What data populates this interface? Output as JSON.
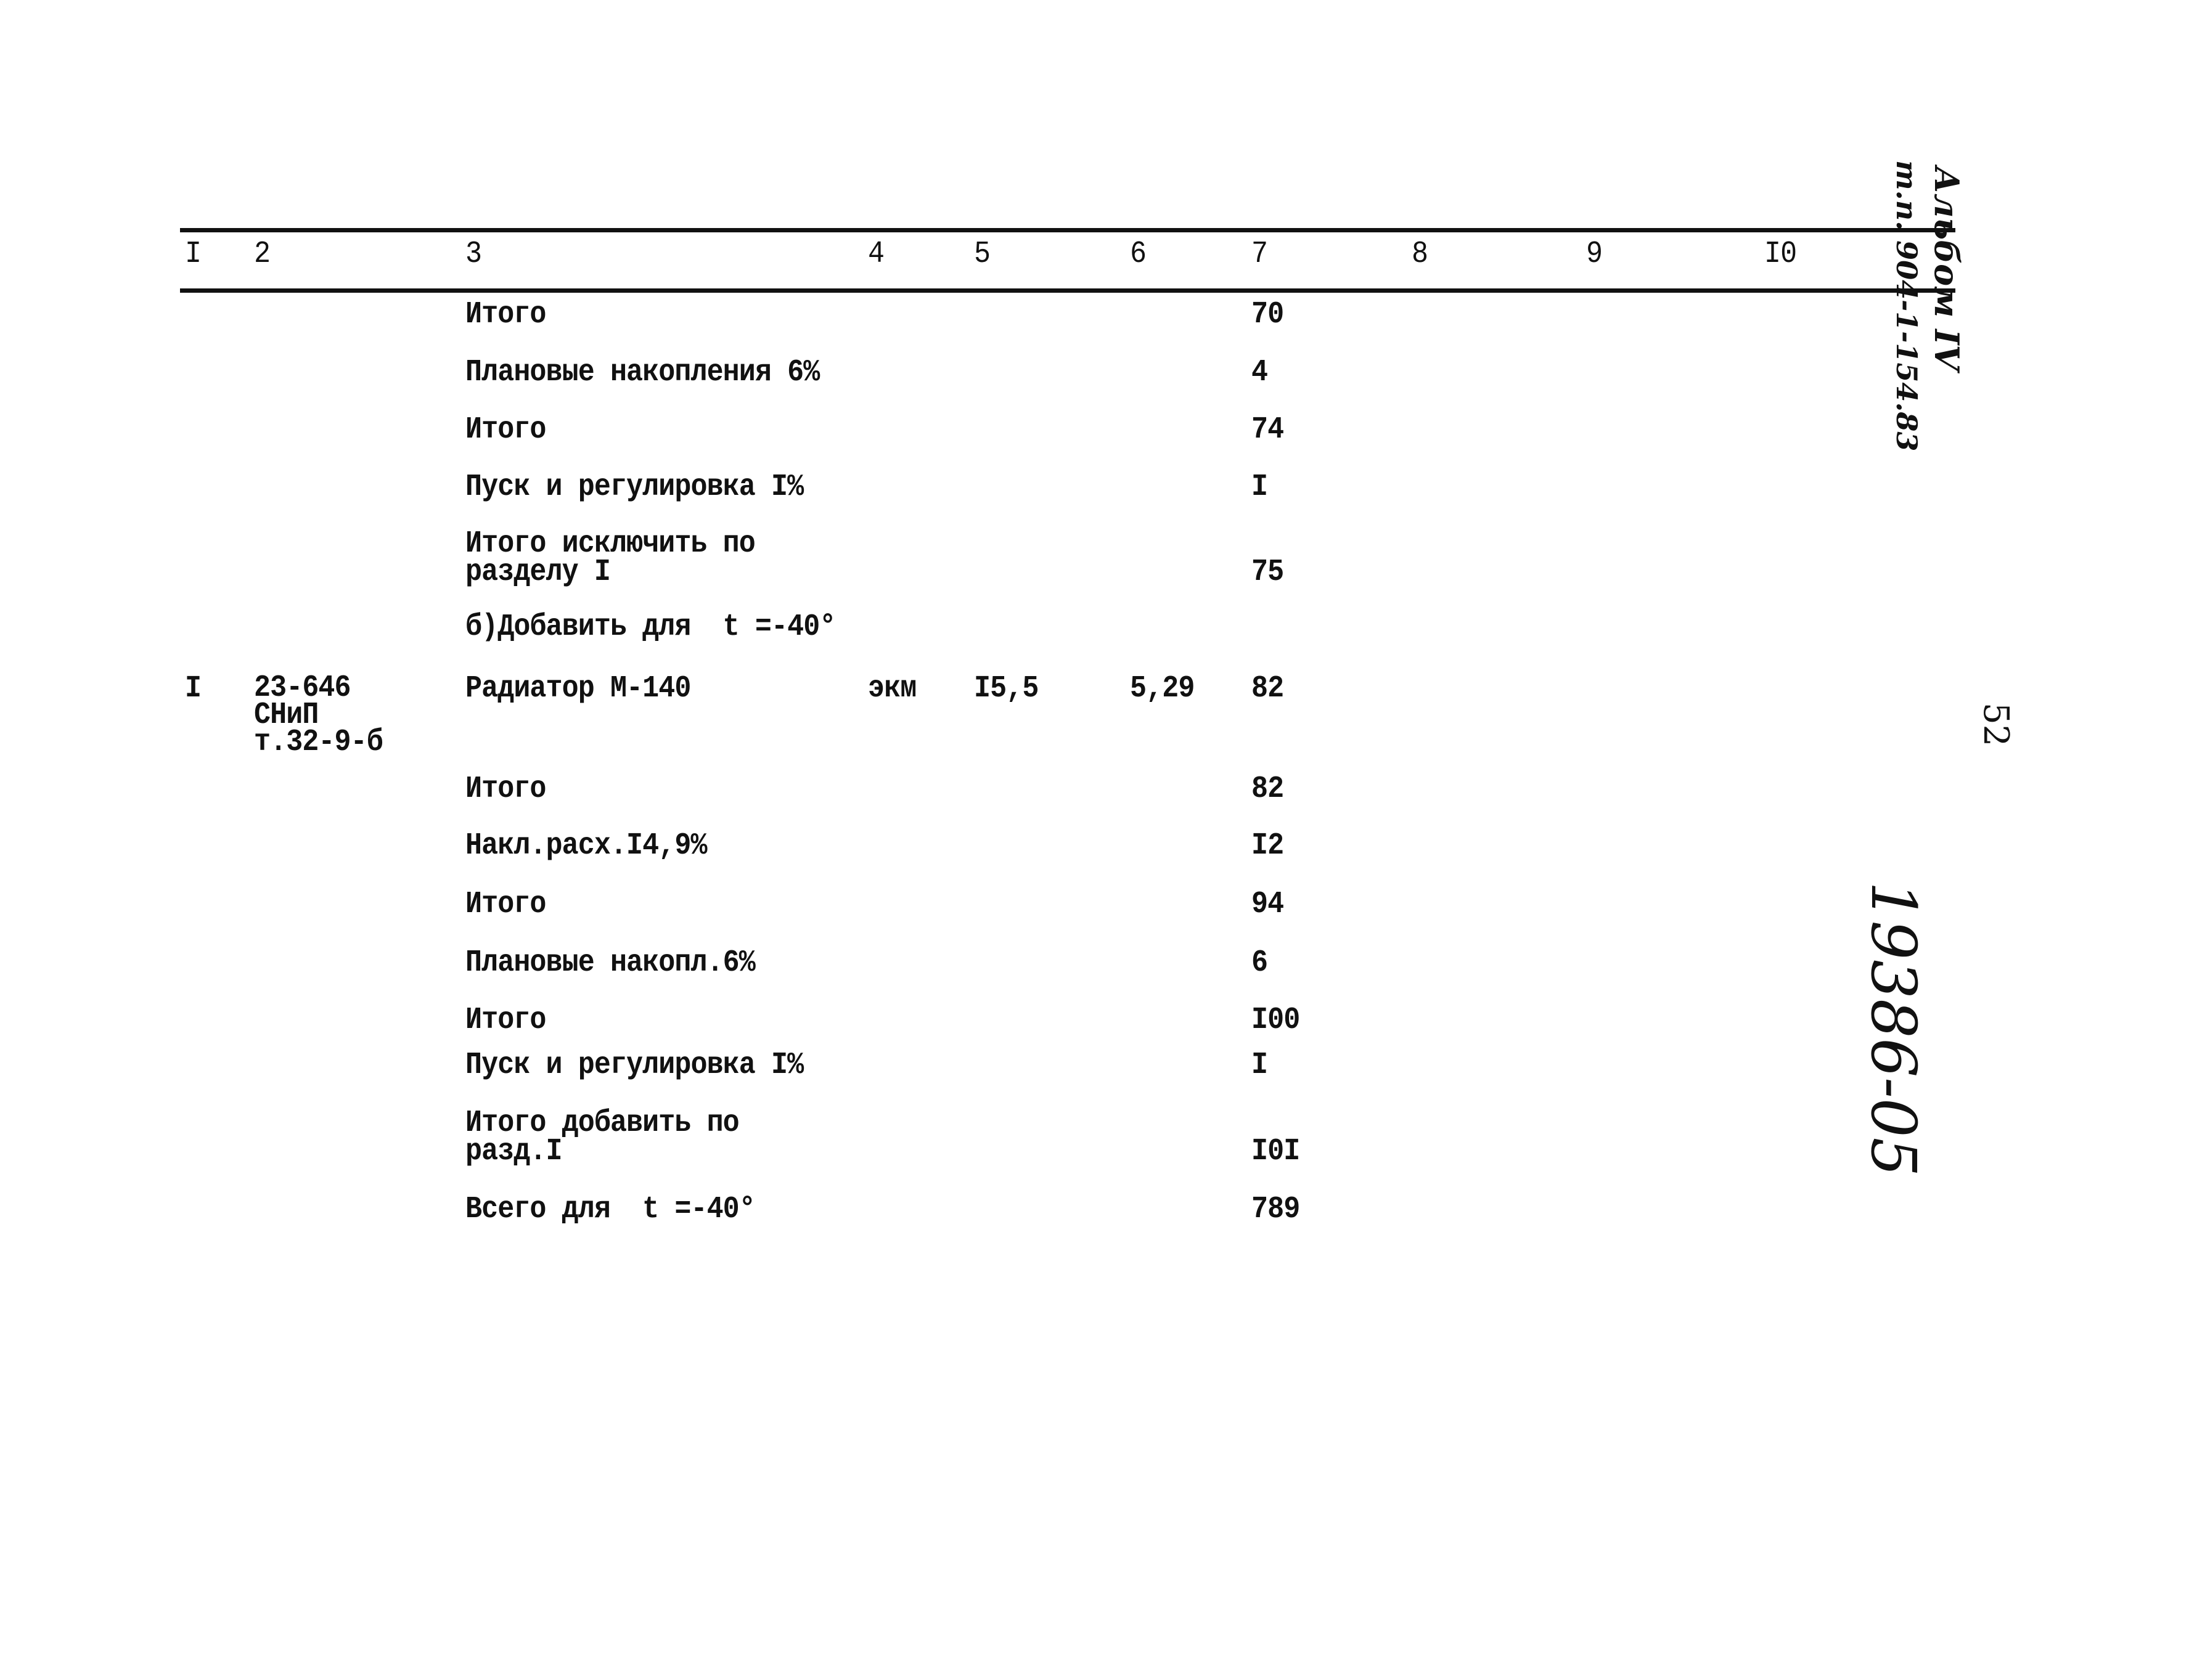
{
  "header": {
    "columns": [
      "I",
      "2",
      "3",
      "4",
      "5",
      "6",
      "7",
      "8",
      "9",
      "I0"
    ]
  },
  "rows": [
    {
      "c3": "Итого",
      "c7": "70"
    },
    {
      "c3": "Плановые накопления 6%",
      "c7": "4"
    },
    {
      "c3": "Итого",
      "c7": "74"
    },
    {
      "c3": "Пуск и регулировка I%",
      "c7": "I"
    },
    {
      "c3": "Итого исключить по\nразделу I",
      "c7": "75"
    },
    {
      "c3": "б)Добавить для  t =-40°"
    },
    {
      "c1": "I",
      "c2": "23-646\nСНиП\nт.32-9-б",
      "c3": "Радиатор М-140",
      "c4": "экм",
      "c5": "I5,5",
      "c6": "5,29",
      "c7": "82"
    },
    {
      "c3": "Итого",
      "c7": "82"
    },
    {
      "c3": "Накл.расх.I4,9%",
      "c7": "I2"
    },
    {
      "c3": "Итого",
      "c7": "94"
    },
    {
      "c3": "Плановые накопл.6%",
      "c7": "6"
    },
    {
      "c3": "Итого",
      "c7": "I00"
    },
    {
      "c3": "Пуск и регулировка I%",
      "c7": "I"
    },
    {
      "c3": "Итого добавить по\nразд.I",
      "c7": "I0I"
    },
    {
      "c3": "Всего для  t =-40°",
      "c7": "789"
    }
  ],
  "margin": {
    "album": "Альбом IV",
    "project": "т.п. 904-1-154.83",
    "page_number": "52",
    "inventory": "19386-05"
  }
}
